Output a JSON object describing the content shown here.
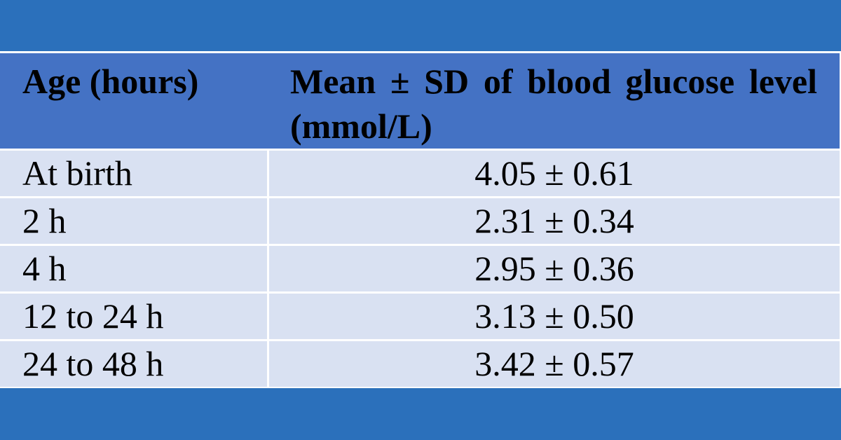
{
  "table": {
    "headers": [
      "Age (hours)",
      "Mean ± SD of blood glucose level (mmol/L)"
    ],
    "rows": [
      {
        "age": "At birth",
        "value": "4.05 ± 0.61"
      },
      {
        "age": "2 h",
        "value": "2.31 ± 0.34"
      },
      {
        "age": "4 h",
        "value": "2.95 ± 0.36"
      },
      {
        "age": "12 to 24 h",
        "value": "3.13 ± 0.50"
      },
      {
        "age": "24 to 48 h",
        "value": "3.42 ± 0.57"
      }
    ]
  },
  "colors": {
    "page_background": "#2b70bb",
    "header_background": "#4472c4",
    "row_background": "#d9e1f2",
    "grid_lines": "#ffffff"
  }
}
